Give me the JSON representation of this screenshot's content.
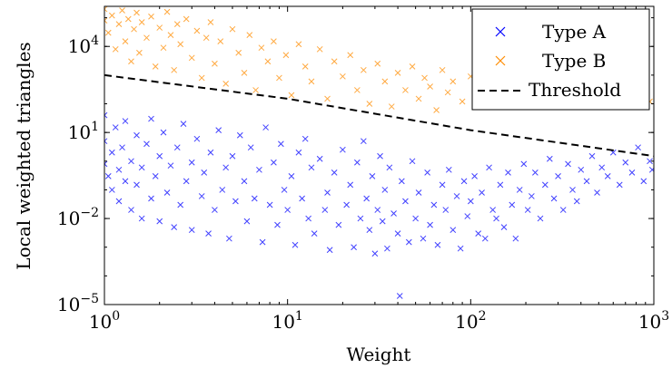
{
  "chart_data": {
    "type": "scatter",
    "xlabel": "Weight",
    "ylabel": "Local weighted triangles",
    "x_scale": "log",
    "y_scale": "log",
    "xlim": [
      1,
      1000
    ],
    "ylim": [
      1e-05,
      250000
    ],
    "x_ticks": [
      {
        "value": 1,
        "base": "10",
        "exp": "0"
      },
      {
        "value": 10,
        "base": "10",
        "exp": "1"
      },
      {
        "value": 100,
        "base": "10",
        "exp": "2"
      },
      {
        "value": 1000,
        "base": "10",
        "exp": "3"
      }
    ],
    "y_ticks": [
      {
        "value": 1e-05,
        "base": "10",
        "exp": "−5"
      },
      {
        "value": 0.01,
        "base": "10",
        "exp": "−2"
      },
      {
        "value": 10,
        "base": "10",
        "exp": "1"
      },
      {
        "value": 10000,
        "base": "10",
        "exp": "4"
      }
    ],
    "legend_position": "top-right",
    "grid": false,
    "series": [
      {
        "name": "Type A",
        "color": "#0000ff",
        "marker": "x",
        "points": [
          [
            1.0,
            0.8
          ],
          [
            1.0,
            5
          ],
          [
            1.0,
            40
          ],
          [
            1.05,
            0.3
          ],
          [
            1.1,
            2
          ],
          [
            1.1,
            0.1
          ],
          [
            1.15,
            15
          ],
          [
            1.2,
            0.5
          ],
          [
            1.2,
            0.04
          ],
          [
            1.25,
            3
          ],
          [
            1.3,
            0.2
          ],
          [
            1.3,
            25
          ],
          [
            1.4,
            1
          ],
          [
            1.4,
            0.02
          ],
          [
            1.5,
            8
          ],
          [
            1.5,
            0.15
          ],
          [
            1.6,
            0.6
          ],
          [
            1.6,
            0.01
          ],
          [
            1.7,
            4
          ],
          [
            1.8,
            0.05
          ],
          [
            1.8,
            30
          ],
          [
            1.9,
            0.3
          ],
          [
            2.0,
            1.5
          ],
          [
            2.0,
            0.008
          ],
          [
            2.1,
            10
          ],
          [
            2.2,
            0.08
          ],
          [
            2.3,
            0.7
          ],
          [
            2.4,
            0.005
          ],
          [
            2.5,
            3
          ],
          [
            2.6,
            0.03
          ],
          [
            2.7,
            20
          ],
          [
            2.8,
            0.2
          ],
          [
            3.0,
            0.9
          ],
          [
            3.0,
            0.004
          ],
          [
            3.2,
            6
          ],
          [
            3.4,
            0.06
          ],
          [
            3.5,
            0.4
          ],
          [
            3.7,
            0.003
          ],
          [
            3.8,
            2
          ],
          [
            4.0,
            0.02
          ],
          [
            4.2,
            12
          ],
          [
            4.4,
            0.1
          ],
          [
            4.6,
            0.6
          ],
          [
            4.8,
            0.002
          ],
          [
            5.0,
            1.5
          ],
          [
            5.2,
            0.04
          ],
          [
            5.5,
            8
          ],
          [
            5.8,
            0.2
          ],
          [
            6.0,
            0.008
          ],
          [
            6.3,
            3
          ],
          [
            6.6,
            0.05
          ],
          [
            7.0,
            0.5
          ],
          [
            7.3,
            0.0015
          ],
          [
            7.6,
            15
          ],
          [
            8.0,
            0.03
          ],
          [
            8.4,
            0.9
          ],
          [
            8.8,
            0.006
          ],
          [
            9.2,
            4
          ],
          [
            9.6,
            0.1
          ],
          [
            10,
            0.02
          ],
          [
            10.5,
            0.3
          ],
          [
            11,
            0.0012
          ],
          [
            11.5,
            2
          ],
          [
            12,
            0.05
          ],
          [
            12.5,
            6
          ],
          [
            13,
            0.01
          ],
          [
            13.5,
            0.6
          ],
          [
            14,
            0.003
          ],
          [
            15,
            1.2
          ],
          [
            16,
            0.02
          ],
          [
            16.5,
            0.08
          ],
          [
            17,
            0.0008
          ],
          [
            18,
            0.4
          ],
          [
            19,
            0.006
          ],
          [
            20,
            2.5
          ],
          [
            21,
            0.03
          ],
          [
            22,
            0.15
          ],
          [
            23,
            0.001
          ],
          [
            24,
            0.9
          ],
          [
            25,
            0.01
          ],
          [
            26,
            5
          ],
          [
            27,
            0.05
          ],
          [
            28,
            0.004
          ],
          [
            29,
            0.3
          ],
          [
            30,
            0.0006
          ],
          [
            31,
            0.02
          ],
          [
            32,
            1.5
          ],
          [
            33,
            0.008
          ],
          [
            34,
            0.1
          ],
          [
            35,
            0.0009
          ],
          [
            36,
            0.6
          ],
          [
            38,
            0.015
          ],
          [
            40,
            0.003
          ],
          [
            41,
            2e-05
          ],
          [
            42,
            0.2
          ],
          [
            44,
            0.04
          ],
          [
            46,
            0.0015
          ],
          [
            48,
            1
          ],
          [
            50,
            0.01
          ],
          [
            52,
            0.08
          ],
          [
            55,
            0.002
          ],
          [
            58,
            0.4
          ],
          [
            60,
            0.006
          ],
          [
            63,
            0.03
          ],
          [
            66,
            0.0012
          ],
          [
            70,
            0.15
          ],
          [
            73,
            0.02
          ],
          [
            76,
            0.5
          ],
          [
            80,
            0.004
          ],
          [
            84,
            0.06
          ],
          [
            88,
            0.0009
          ],
          [
            92,
            0.2
          ],
          [
            96,
            0.012
          ],
          [
            100,
            0.04
          ],
          [
            105,
            0.3
          ],
          [
            110,
            0.003
          ],
          [
            115,
            0.08
          ],
          [
            120,
            0.002
          ],
          [
            126,
            0.6
          ],
          [
            132,
            0.02
          ],
          [
            138,
            0.01
          ],
          [
            145,
            0.15
          ],
          [
            152,
            0.005
          ],
          [
            160,
            0.4
          ],
          [
            168,
            0.03
          ],
          [
            176,
            0.002
          ],
          [
            185,
            0.1
          ],
          [
            195,
            0.8
          ],
          [
            205,
            0.02
          ],
          [
            215,
            0.06
          ],
          [
            225,
            0.4
          ],
          [
            240,
            0.01
          ],
          [
            255,
            0.15
          ],
          [
            270,
            1.2
          ],
          [
            285,
            0.05
          ],
          [
            300,
            0.3
          ],
          [
            320,
            0.02
          ],
          [
            340,
            0.8
          ],
          [
            360,
            0.1
          ],
          [
            380,
            0.04
          ],
          [
            400,
            0.5
          ],
          [
            430,
            0.2
          ],
          [
            460,
            1.5
          ],
          [
            490,
            0.08
          ],
          [
            520,
            0.6
          ],
          [
            560,
            0.3
          ],
          [
            600,
            2
          ],
          [
            650,
            0.15
          ],
          [
            700,
            0.9
          ],
          [
            760,
            0.4
          ],
          [
            820,
            3
          ],
          [
            880,
            0.2
          ],
          [
            950,
            1
          ],
          [
            980,
            0.5
          ]
        ]
      },
      {
        "name": "Type B",
        "color": "#ff8c00",
        "marker": "x",
        "points": [
          [
            1.0,
            80000
          ],
          [
            1.0,
            200000
          ],
          [
            1.05,
            30000
          ],
          [
            1.1,
            120000
          ],
          [
            1.15,
            8000
          ],
          [
            1.2,
            60000
          ],
          [
            1.25,
            180000
          ],
          [
            1.3,
            15000
          ],
          [
            1.35,
            90000
          ],
          [
            1.4,
            3000
          ],
          [
            1.45,
            40000
          ],
          [
            1.5,
            150000
          ],
          [
            1.55,
            6000
          ],
          [
            1.6,
            70000
          ],
          [
            1.7,
            20000
          ],
          [
            1.8,
            110000
          ],
          [
            1.9,
            2000
          ],
          [
            2.0,
            45000
          ],
          [
            2.1,
            9000
          ],
          [
            2.2,
            160000
          ],
          [
            2.3,
            25000
          ],
          [
            2.4,
            1500
          ],
          [
            2.5,
            60000
          ],
          [
            2.6,
            12000
          ],
          [
            2.8,
            90000
          ],
          [
            3.0,
            4000
          ],
          [
            3.2,
            35000
          ],
          [
            3.4,
            800
          ],
          [
            3.6,
            20000
          ],
          [
            3.8,
            70000
          ],
          [
            4.0,
            2500
          ],
          [
            4.3,
            15000
          ],
          [
            4.6,
            500
          ],
          [
            5.0,
            40000
          ],
          [
            5.4,
            6000
          ],
          [
            5.8,
            1200
          ],
          [
            6.2,
            25000
          ],
          [
            6.7,
            300
          ],
          [
            7.2,
            9000
          ],
          [
            7.8,
            3000
          ],
          [
            8.4,
            15000
          ],
          [
            9.0,
            800
          ],
          [
            9.8,
            5000
          ],
          [
            10.5,
            200
          ],
          [
            11.5,
            12000
          ],
          [
            12.5,
            2000
          ],
          [
            13.5,
            600
          ],
          [
            15,
            8000
          ],
          [
            16.5,
            150
          ],
          [
            18,
            3000
          ],
          [
            20,
            900
          ],
          [
            22,
            5000
          ],
          [
            24,
            300
          ],
          [
            26,
            1500
          ],
          [
            28,
            100
          ],
          [
            31,
            2500
          ],
          [
            34,
            600
          ],
          [
            37,
            80
          ],
          [
            40,
            1200
          ],
          [
            44,
            300
          ],
          [
            48,
            2000
          ],
          [
            52,
            150
          ],
          [
            56,
            800
          ],
          [
            60,
            400
          ],
          [
            65,
            60
          ],
          [
            70,
            1500
          ],
          [
            75,
            250
          ],
          [
            80,
            600
          ],
          [
            90,
            120
          ],
          [
            100,
            900
          ],
          [
            110,
            300
          ],
          [
            120,
            700
          ],
          [
            130,
            180
          ],
          [
            145,
            500
          ],
          [
            160,
            250
          ],
          [
            180,
            800
          ],
          [
            200,
            350
          ],
          [
            220,
            150
          ],
          [
            240,
            600
          ],
          [
            260,
            300
          ],
          [
            300,
            200
          ],
          [
            350,
            500
          ],
          [
            400,
            150
          ],
          [
            500,
            400
          ],
          [
            600,
            250
          ],
          [
            700,
            900
          ],
          [
            800,
            300
          ],
          [
            950,
            120
          ]
        ]
      },
      {
        "name": "Threshold",
        "color": "#000000",
        "line": "dashed",
        "points": [
          [
            1,
            1000
          ],
          [
            10,
            150
          ],
          [
            100,
            12
          ],
          [
            1000,
            1.5
          ]
        ]
      }
    ]
  }
}
